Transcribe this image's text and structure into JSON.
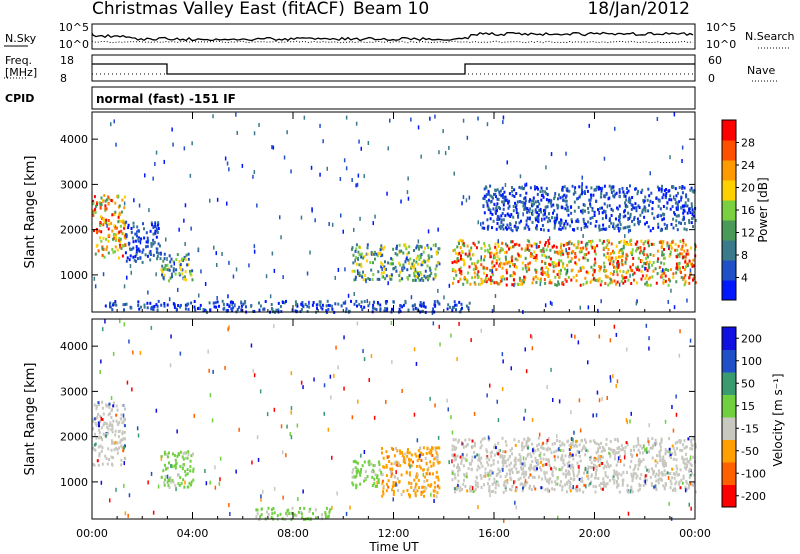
{
  "header": {
    "station": "Christmas Valley East (fitACF)",
    "beam": "Beam 10",
    "date": "18/Jan/2012"
  },
  "panels": {
    "nsky": {
      "label": "N.Sky",
      "ticks": [
        "10^5",
        "10^0"
      ],
      "right_label": "N.Search",
      "right_ticks": [
        "10^5",
        "10^0"
      ]
    },
    "freq": {
      "label_line1": "Freq.",
      "label_line2": "[MHz]",
      "ticks": [
        "18",
        "8"
      ],
      "right_label": "Nave",
      "right_ticks": [
        "60",
        "0"
      ]
    },
    "cpid": {
      "label": "CPID",
      "text": "normal (fast) -151 IF"
    }
  },
  "colors": {
    "power": [
      "#0018ff",
      "#2050c8",
      "#3a7a8a",
      "#4a9a5a",
      "#7ad040",
      "#ffd000",
      "#ff9a00",
      "#ff5000",
      "#ff0000"
    ],
    "velocity": [
      "#ff0000",
      "#ff6000",
      "#ffa000",
      "#c8c8c0",
      "#70d040",
      "#3a9a70",
      "#2050c8",
      "#1010e0"
    ]
  },
  "chart_data": [
    {
      "type": "heatmap",
      "title": "",
      "xlabel": "",
      "ylabel": "Slant Range [km]",
      "xlim": [
        0,
        24
      ],
      "ylim": [
        180,
        4600
      ],
      "x_ticks": [
        0,
        4,
        8,
        12,
        16,
        20,
        24
      ],
      "x_tick_labels": [
        "00:00",
        "04:00",
        "08:00",
        "12:00",
        "16:00",
        "20:00",
        "00:00"
      ],
      "y_ticks": [
        1000,
        2000,
        3000,
        4000
      ],
      "y_tick_labels": [
        "1000",
        "2000",
        "3000",
        "4000"
      ],
      "colorbar": {
        "label": "Power [dB]",
        "ticks": [
          "4",
          "8",
          "12",
          "16",
          "20",
          "24",
          "28"
        ],
        "range": [
          0,
          32
        ]
      },
      "echo_regions": [
        {
          "t": [
            0.0,
            1.3
          ],
          "r": [
            1400,
            2800
          ],
          "level": "high"
        },
        {
          "t": [
            1.3,
            2.7
          ],
          "r": [
            1300,
            2200
          ],
          "level": "low"
        },
        {
          "t": [
            2.7,
            4.0
          ],
          "r": [
            900,
            1500
          ],
          "level": "mid"
        },
        {
          "t": [
            0.5,
            4.0
          ],
          "r": [
            250,
            450
          ],
          "level": "low"
        },
        {
          "t": [
            4.0,
            15.0
          ],
          "r": [
            200,
            450
          ],
          "level": "low"
        },
        {
          "t": [
            10.3,
            13.8
          ],
          "r": [
            900,
            1700
          ],
          "level": "mid"
        },
        {
          "t": [
            14.3,
            24.0
          ],
          "r": [
            800,
            1800
          ],
          "level": "high"
        },
        {
          "t": [
            15.5,
            24.0
          ],
          "r": [
            2000,
            3000
          ],
          "level": "low"
        }
      ]
    },
    {
      "type": "heatmap",
      "title": "",
      "xlabel": "Time UT",
      "ylabel": "Slant Range [km]",
      "xlim": [
        0,
        24
      ],
      "ylim": [
        180,
        4600
      ],
      "x_ticks": [
        0,
        4,
        8,
        12,
        16,
        20,
        24
      ],
      "x_tick_labels": [
        "00:00",
        "04:00",
        "08:00",
        "12:00",
        "16:00",
        "20:00",
        "00:00"
      ],
      "y_ticks": [
        1000,
        2000,
        3000,
        4000
      ],
      "y_tick_labels": [
        "1000",
        "2000",
        "3000",
        "4000"
      ],
      "colorbar": {
        "label": "Velocity [m s⁻¹]",
        "ticks": [
          "200",
          "100",
          "50",
          "15",
          "-15",
          "-50",
          "-100",
          "-200"
        ]
      },
      "echo_regions": [
        {
          "t": [
            0.0,
            1.3
          ],
          "r": [
            1400,
            2800
          ],
          "level": "gray"
        },
        {
          "t": [
            2.7,
            4.0
          ],
          "r": [
            900,
            1700
          ],
          "level": "green"
        },
        {
          "t": [
            10.3,
            11.5
          ],
          "r": [
            900,
            1500
          ],
          "level": "green"
        },
        {
          "t": [
            11.5,
            13.8
          ],
          "r": [
            700,
            1800
          ],
          "level": "orange"
        },
        {
          "t": [
            14.3,
            24.0
          ],
          "r": [
            800,
            2000
          ],
          "level": "gray"
        },
        {
          "t": [
            6.5,
            9.5
          ],
          "r": [
            200,
            450
          ],
          "level": "green"
        }
      ]
    }
  ]
}
